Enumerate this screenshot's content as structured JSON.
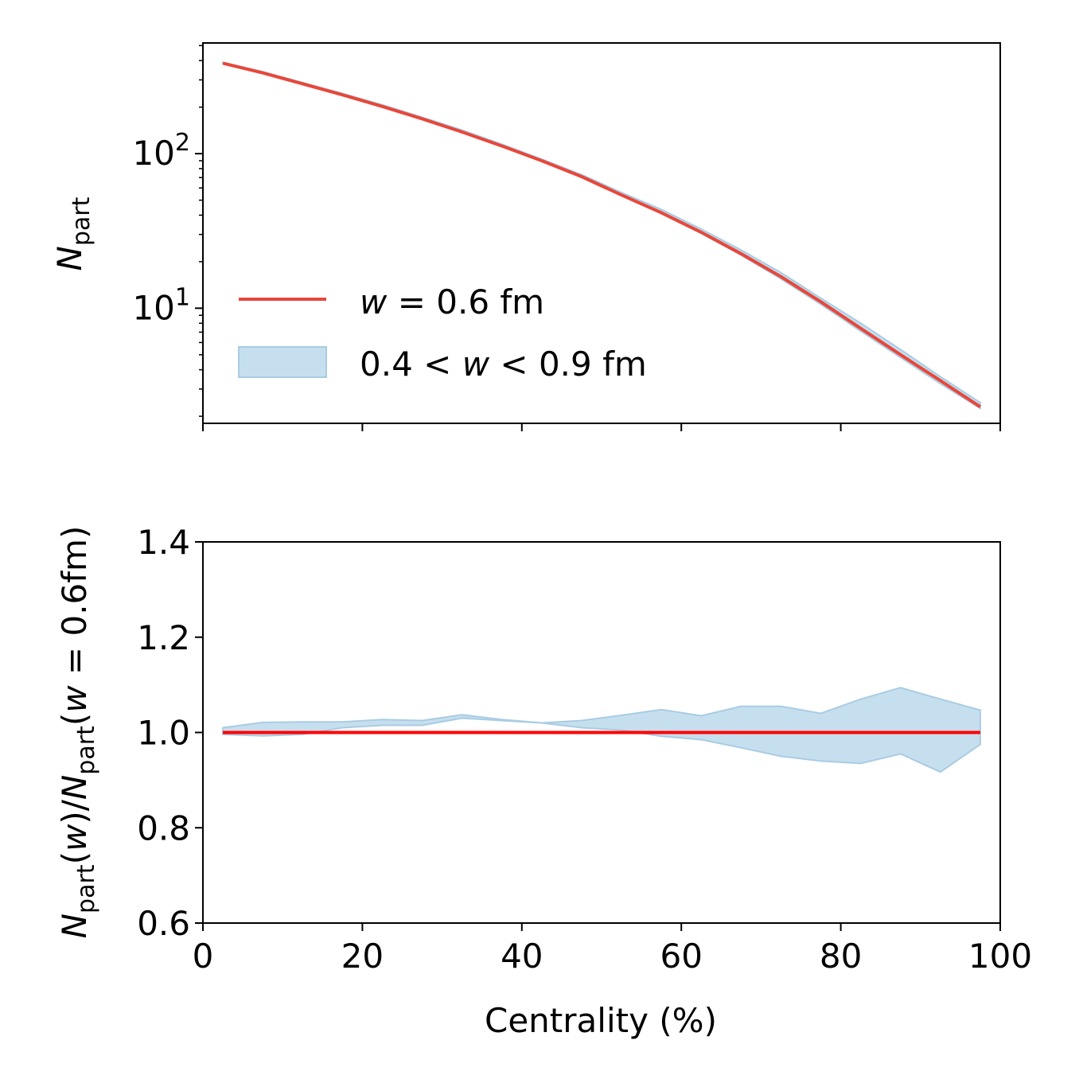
{
  "colors": {
    "line": "#e8473a",
    "ratio_line": "#ff0000",
    "band_fill": "#c6dfee",
    "band_edge": "#a9cce3",
    "axes": "#000000"
  },
  "chart_data": [
    {
      "id": "top",
      "type": "line",
      "yscale": "log",
      "xlim": [
        0,
        100
      ],
      "ylim": [
        1.8,
        520
      ],
      "ylabel_main": "N",
      "ylabel_sub": "part",
      "yticks": [
        {
          "value": 10,
          "base": "10",
          "exp": "1"
        },
        {
          "value": 100,
          "base": "10",
          "exp": "2"
        }
      ],
      "x_tick_labels_shown": false,
      "legend": {
        "position": "lower-left",
        "items": [
          {
            "kind": "line",
            "label_italic": "w",
            "label_rest": " = 0.6 fm"
          },
          {
            "kind": "band",
            "label_pre": "0.4 < ",
            "label_italic": "w",
            "label_rest": " < 0.9 fm"
          }
        ]
      },
      "series": [
        {
          "kind": "line",
          "x": [
            2.5,
            7.5,
            12.5,
            17.5,
            22.5,
            27.5,
            32.5,
            37.5,
            42.5,
            47.5,
            52.5,
            57.5,
            62.5,
            67.5,
            72.5,
            77.5,
            82.5,
            87.5,
            92.5,
            97.5
          ],
          "y": [
            385,
            333,
            283,
            240,
            202,
            168,
            138,
            112,
            90,
            71,
            54,
            41.5,
            31,
            22.5,
            16,
            11,
            7.4,
            5.0,
            3.4,
            2.3
          ]
        },
        {
          "kind": "band",
          "x": [
            2.5,
            7.5,
            12.5,
            17.5,
            22.5,
            27.5,
            32.5,
            37.5,
            42.5,
            47.5,
            52.5,
            57.5,
            62.5,
            67.5,
            72.5,
            77.5,
            82.5,
            87.5,
            92.5,
            97.5
          ],
          "y_low": [
            384,
            331,
            282,
            239,
            201,
            167,
            137,
            111,
            89.5,
            70.5,
            53.5,
            41,
            30.5,
            22,
            15.5,
            10.6,
            7.1,
            4.8,
            3.25,
            2.25
          ],
          "y_high": [
            389,
            339,
            288,
            245,
            207,
            172,
            142,
            115,
            92,
            73,
            56,
            43.5,
            32.5,
            23.8,
            17,
            11.6,
            8.0,
            5.4,
            3.6,
            2.45
          ]
        }
      ]
    },
    {
      "id": "bottom",
      "type": "line",
      "xlim": [
        0,
        100
      ],
      "ylim": [
        0.6,
        1.4
      ],
      "xlabel": "Centrality (%)",
      "ylabel_parts": [
        {
          "t": "N",
          "style": "italic"
        },
        {
          "t": "part",
          "style": "sub"
        },
        {
          "t": "(",
          "style": "normal"
        },
        {
          "t": "w",
          "style": "italic"
        },
        {
          "t": ")/",
          "style": "normal"
        },
        {
          "t": "N",
          "style": "italic"
        },
        {
          "t": "part",
          "style": "sub"
        },
        {
          "t": "(",
          "style": "normal"
        },
        {
          "t": "w",
          "style": "italic"
        },
        {
          "t": " = 0.6fm)",
          "style": "normal"
        }
      ],
      "xticks": [
        0,
        20,
        40,
        60,
        80,
        100
      ],
      "xtick_labels": [
        "0",
        "20",
        "40",
        "60",
        "80",
        "100"
      ],
      "yticks": [
        0.6,
        0.8,
        1.0,
        1.2,
        1.4
      ],
      "ytick_labels": [
        "0.6",
        "0.8",
        "1.0",
        "1.2",
        "1.4"
      ],
      "series": [
        {
          "kind": "line",
          "x": [
            2.5,
            97.5
          ],
          "y": [
            1.0,
            1.0
          ]
        },
        {
          "kind": "band",
          "x": [
            2.5,
            7.5,
            12.5,
            17.5,
            22.5,
            27.5,
            32.5,
            37.5,
            42.5,
            47.5,
            52.5,
            57.5,
            62.5,
            67.5,
            72.5,
            77.5,
            82.5,
            87.5,
            92.5,
            97.5
          ],
          "y_low": [
            0.996,
            0.993,
            0.996,
            1.01,
            1.015,
            1.015,
            1.03,
            1.025,
            1.02,
            1.01,
            1.005,
            0.992,
            0.985,
            0.968,
            0.95,
            0.94,
            0.935,
            0.955,
            0.917,
            0.975
          ],
          "y_high": [
            1.01,
            1.021,
            1.022,
            1.022,
            1.027,
            1.025,
            1.037,
            1.027,
            1.02,
            1.025,
            1.036,
            1.048,
            1.035,
            1.055,
            1.055,
            1.04,
            1.07,
            1.094,
            1.07,
            1.047
          ]
        }
      ]
    }
  ]
}
